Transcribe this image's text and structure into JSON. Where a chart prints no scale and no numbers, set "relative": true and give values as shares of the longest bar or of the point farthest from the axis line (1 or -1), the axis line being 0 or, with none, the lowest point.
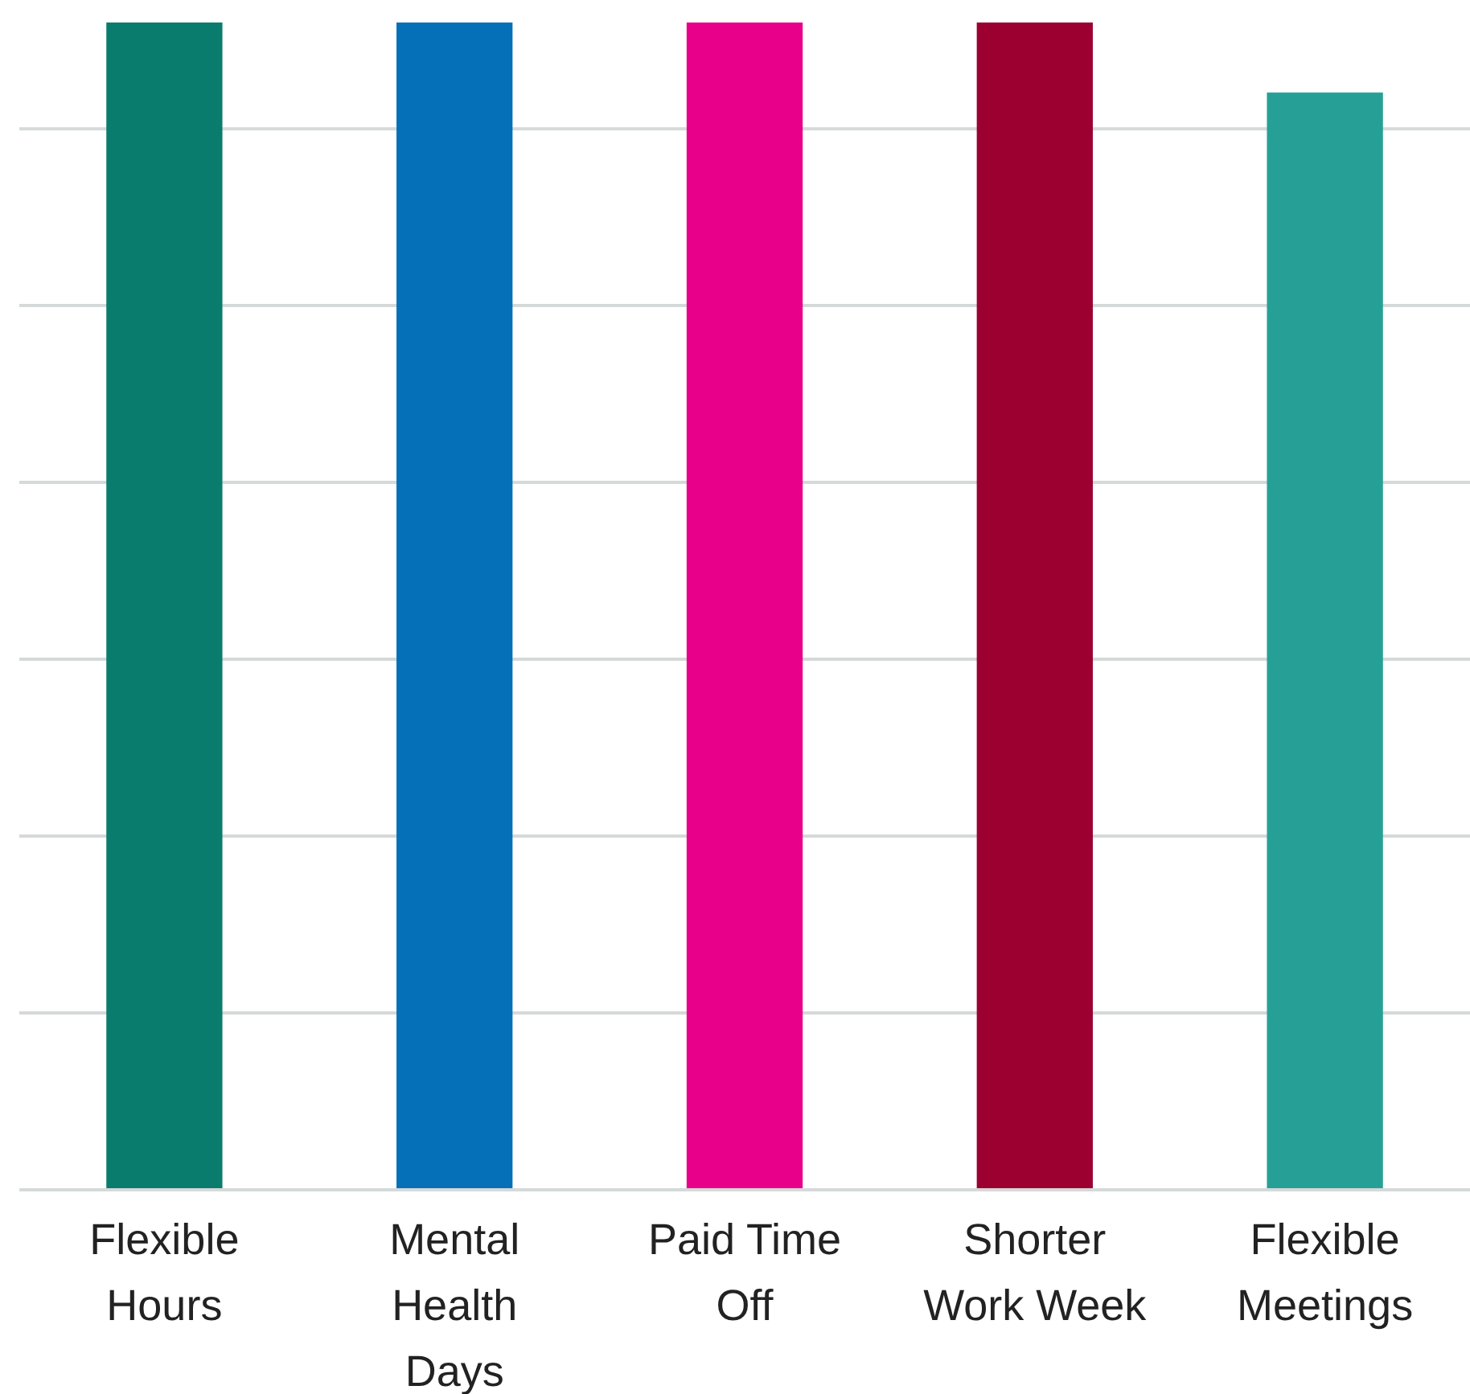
{
  "chart_data": {
    "type": "bar",
    "categories": [
      "Flexible Hours",
      "Mental Health Days",
      "Paid Time Off",
      "Shorter Work Week",
      "Flexible Meetings"
    ],
    "values": [
      1,
      1,
      1,
      1,
      0.94
    ],
    "colors": [
      "#0a7c6e",
      "#0570b8",
      "#e8008a",
      "#9b0031",
      "#26a096"
    ],
    "relative": true,
    "grid": "y"
  }
}
